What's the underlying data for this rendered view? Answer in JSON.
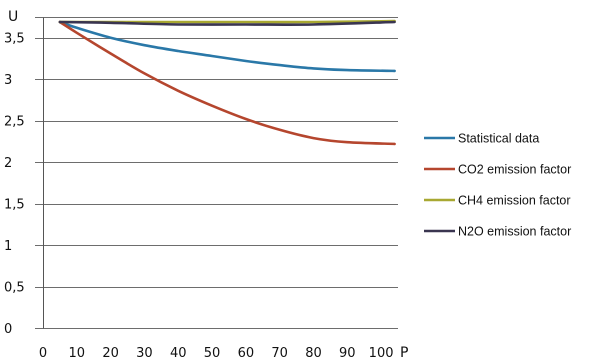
{
  "chart_data": {
    "type": "line",
    "ylabel": "U",
    "xlabel": "P",
    "xlim": [
      0,
      105
    ],
    "ylim": [
      0,
      3.75
    ],
    "x_ticks": [
      "0",
      "10",
      "20",
      "30",
      "40",
      "50",
      "60",
      "70",
      "80",
      "90",
      "100"
    ],
    "y_ticks": [
      "0",
      "0,5",
      "1",
      "1,5",
      "2",
      "2,5",
      "3",
      "3,5"
    ],
    "grid": "horizontal",
    "legend_position": "right",
    "series": [
      {
        "name": "Statistical data",
        "color": "#2a78a8",
        "x": [
          5,
          10,
          20,
          30,
          40,
          50,
          60,
          70,
          80,
          90,
          104
        ],
        "y": [
          3.69,
          3.62,
          3.5,
          3.41,
          3.34,
          3.28,
          3.22,
          3.17,
          3.13,
          3.11,
          3.1
        ]
      },
      {
        "name": "CO2 emission factor",
        "color": "#b5462e",
        "x": [
          5,
          10,
          20,
          30,
          40,
          50,
          60,
          70,
          80,
          90,
          104
        ],
        "y": [
          3.69,
          3.56,
          3.31,
          3.07,
          2.86,
          2.68,
          2.52,
          2.39,
          2.29,
          2.24,
          2.22
        ]
      },
      {
        "name": "CH4 emission factor",
        "color": "#a8a832",
        "x": [
          5,
          20,
          40,
          60,
          80,
          104
        ],
        "y": [
          3.69,
          3.69,
          3.69,
          3.69,
          3.69,
          3.7
        ]
      },
      {
        "name": "N2O emission factor",
        "color": "#3a3550",
        "x": [
          5,
          20,
          40,
          60,
          80,
          104
        ],
        "y": [
          3.69,
          3.68,
          3.66,
          3.66,
          3.66,
          3.69
        ]
      }
    ]
  }
}
